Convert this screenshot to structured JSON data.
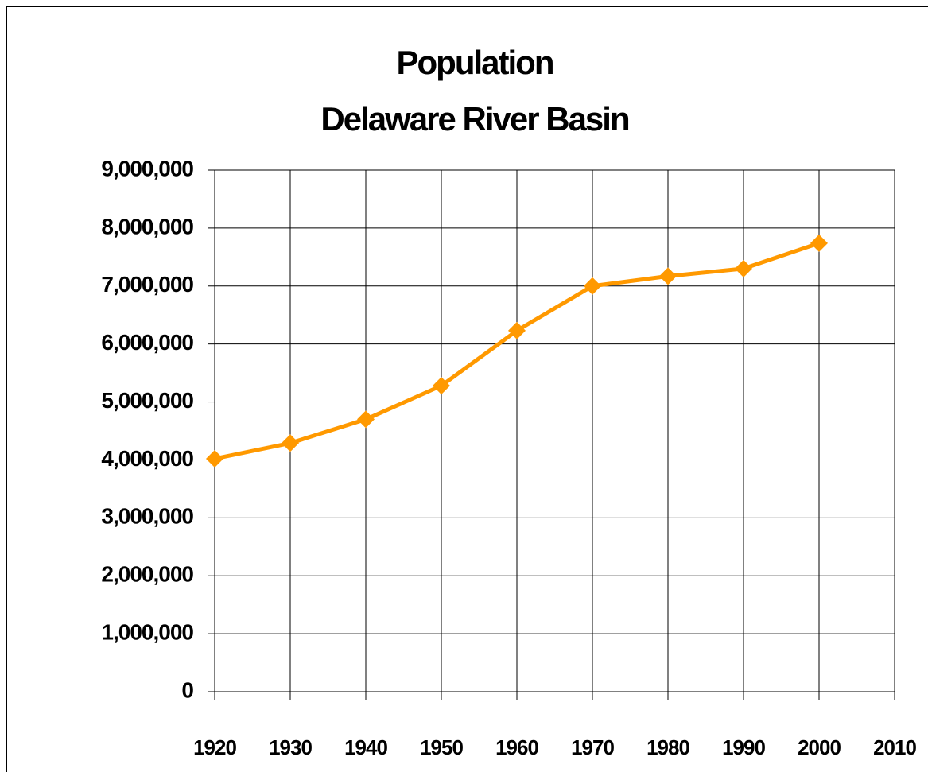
{
  "chart_data": {
    "type": "line",
    "title": "Population",
    "subtitle": "Delaware River Basin",
    "x": [
      1920,
      1930,
      1940,
      1950,
      1960,
      1970,
      1980,
      1990,
      2000
    ],
    "series": [
      {
        "name": "Population",
        "color": "#ff9900",
        "values": [
          4020000,
          4290000,
          4700000,
          5280000,
          6230000,
          7000000,
          7170000,
          7300000,
          7740000
        ]
      }
    ],
    "xlim": [
      1920,
      2010
    ],
    "xticks": [
      1920,
      1930,
      1940,
      1950,
      1960,
      1970,
      1980,
      1990,
      2000,
      2010
    ],
    "ylim": [
      0,
      9000000
    ],
    "yticks": [
      0,
      {
        "value": 1000000,
        "label": "1,000,000"
      },
      {
        "value": 2000000,
        "label": "2,000,000"
      },
      {
        "value": 3000000,
        "label": "3,000,000"
      },
      {
        "value": 4000000,
        "label": "4,000,000"
      },
      {
        "value": 5000000,
        "label": "5,000,000"
      },
      {
        "value": 6000000,
        "label": "6,000,000"
      },
      {
        "value": 7000000,
        "label": "7,000,000"
      },
      {
        "value": 8000000,
        "label": "8,000,000"
      },
      {
        "value": 9000000,
        "label": "9,000,000"
      }
    ],
    "grid": true
  }
}
